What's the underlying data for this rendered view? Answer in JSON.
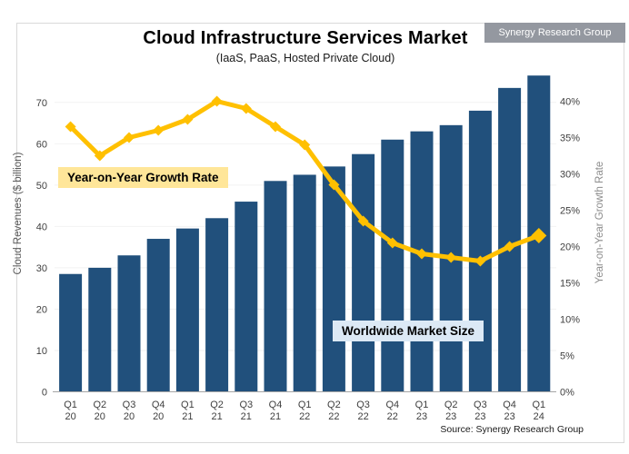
{
  "header": {
    "title": "Cloud Infrastructure Services Market",
    "subtitle": "(IaaS, PaaS, Hosted Private Cloud)",
    "badge": "Synergy Research Group"
  },
  "labels": {
    "growth_line": "Year-on-Year Growth Rate",
    "market_size": "Worldwide Market Size"
  },
  "footer": {
    "source": "Source: Synergy Research Group"
  },
  "colors": {
    "bar": "#21507C",
    "line": "#FFC000",
    "growth_label_bg": "#FFE699",
    "market_label_bg": "#DCE9F5",
    "badge_bg": "#9498A0",
    "axis_text": "#404040",
    "left_axis_title": "#595959",
    "right_axis_title": "#8C8C8C",
    "grid": "#F2F2F2",
    "baseline": "#A6A6A6"
  },
  "chart_data": {
    "type": "bar",
    "title": "Cloud Infrastructure Services Market",
    "subtitle": "(IaaS, PaaS, Hosted Private Cloud)",
    "categories": [
      "Q1 20",
      "Q2 20",
      "Q3 20",
      "Q4 20",
      "Q1 21",
      "Q2 21",
      "Q3 21",
      "Q4 21",
      "Q1 22",
      "Q2 22",
      "Q3 22",
      "Q4 22",
      "Q1 23",
      "Q2 23",
      "Q3 23",
      "Q4 23",
      "Q1 24"
    ],
    "series": [
      {
        "name": "Worldwide Market Size",
        "type": "bar",
        "axis": "left",
        "values": [
          28.5,
          30,
          33,
          37,
          39.5,
          42,
          46,
          51,
          52.5,
          54.5,
          57.5,
          61,
          63,
          64.5,
          68,
          73.5,
          76.5
        ]
      },
      {
        "name": "Year-on-Year Growth Rate",
        "type": "line",
        "axis": "right",
        "values": [
          36.5,
          32.5,
          35,
          36,
          37.5,
          40,
          39,
          36.5,
          34,
          28.5,
          23.5,
          20.5,
          19,
          18.5,
          18,
          20,
          21.5
        ]
      }
    ],
    "left_axis": {
      "title": "Cloud Revenues ($ billion)",
      "ticks": [
        0,
        10,
        20,
        30,
        40,
        50,
        60,
        70
      ],
      "range": [
        0,
        77
      ]
    },
    "right_axis": {
      "title": "Year-on-Year Growth Rate",
      "ticks": [
        "0%",
        "5%",
        "10%",
        "15%",
        "20%",
        "25%",
        "30%",
        "35%",
        "40%"
      ],
      "range": [
        0,
        43.5
      ]
    },
    "grid": true,
    "legend": "inline-labels"
  }
}
